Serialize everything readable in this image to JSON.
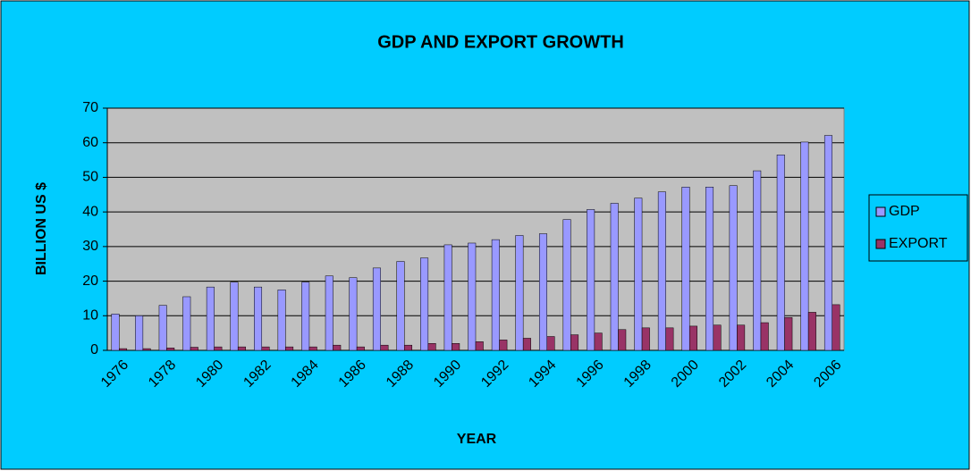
{
  "chart_data": {
    "type": "bar",
    "title": "GDP AND EXPORT GROWTH",
    "x_label": "YEAR",
    "y_label": "BILLION US $",
    "categories": [
      "1976",
      null,
      "1978",
      null,
      "1980",
      null,
      "1982",
      null,
      "1984",
      null,
      "1986",
      null,
      "1988",
      null,
      "1990",
      null,
      "1992",
      null,
      "1994",
      null,
      "1996",
      null,
      "1998",
      null,
      "2000",
      null,
      "2002",
      null,
      "2004",
      null,
      "2006"
    ],
    "series": [
      {
        "name": "GDP",
        "color": "#9999ff",
        "values": [
          10.5,
          10,
          13,
          15.5,
          18.3,
          19.7,
          18.3,
          17.5,
          19.7,
          21.5,
          21,
          23.8,
          25.7,
          26.7,
          30.5,
          31,
          32,
          33.2,
          33.7,
          37.8,
          40.7,
          42.5,
          44,
          45.8,
          47.2,
          47.2,
          47.6,
          51.9,
          56.5,
          60.2,
          62.1
        ]
      },
      {
        "name": "EXPORT",
        "color": "#993366",
        "values": [
          0.5,
          0.5,
          0.7,
          0.9,
          1,
          1,
          1,
          1,
          1,
          1.5,
          1,
          1.5,
          1.5,
          2,
          2,
          2.5,
          3,
          3.5,
          4,
          4.5,
          5,
          6,
          6.5,
          6.5,
          7,
          7.3,
          7.3,
          8,
          9.5,
          11,
          13.2
        ]
      }
    ],
    "ylim": [
      0,
      70
    ],
    "yticks": [
      0,
      10,
      20,
      30,
      40,
      50,
      60,
      70
    ],
    "grid": true,
    "legend": "right"
  }
}
